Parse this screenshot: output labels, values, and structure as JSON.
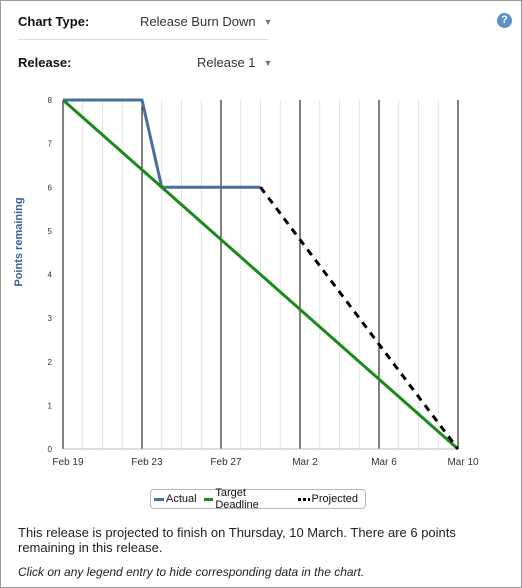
{
  "controls": {
    "chart_type_label": "Chart Type:",
    "chart_type_value": "Release Burn Down",
    "release_label": "Release:",
    "release_value": "Release 1",
    "help_glyph": "?"
  },
  "legend": {
    "items": [
      {
        "label": "Actual",
        "color": "#4a6f9c"
      },
      {
        "label": "Target Deadline",
        "color": "#1a8a1a"
      },
      {
        "label": "Projected",
        "color": "#000000"
      }
    ]
  },
  "summary": {
    "text": "This release is projected to finish on Thursday, 10 March. There are 6 points remaining in this release.",
    "hint": "Click on any legend entry to hide corresponding data in the chart."
  },
  "chart_data": {
    "type": "line",
    "ylabel": "Points remaining",
    "xlabel": "",
    "ylim": [
      0,
      8
    ],
    "yticks": [
      0,
      1,
      2,
      3,
      4,
      5,
      6,
      7,
      8
    ],
    "x_tick_labels": [
      "Feb 19",
      "Feb 23",
      "Feb 27",
      "Mar 2",
      "Mar 6",
      "Mar 10"
    ],
    "x_tick_days": [
      0,
      4,
      8,
      12,
      16,
      20
    ],
    "x_range_days": [
      0,
      20
    ],
    "grid": true,
    "legend_position": "bottom",
    "series": [
      {
        "name": "Actual",
        "color": "#4a6f9c",
        "style": "solid",
        "points": [
          [
            0,
            8
          ],
          [
            4,
            8
          ],
          [
            5,
            6
          ],
          [
            10,
            6
          ]
        ]
      },
      {
        "name": "Target Deadline",
        "color": "#1a8a1a",
        "style": "solid",
        "points": [
          [
            0,
            8
          ],
          [
            20,
            0
          ]
        ]
      },
      {
        "name": "Projected",
        "color": "#000000",
        "style": "dashed",
        "points": [
          [
            10,
            6
          ],
          [
            20,
            0
          ]
        ]
      }
    ]
  }
}
